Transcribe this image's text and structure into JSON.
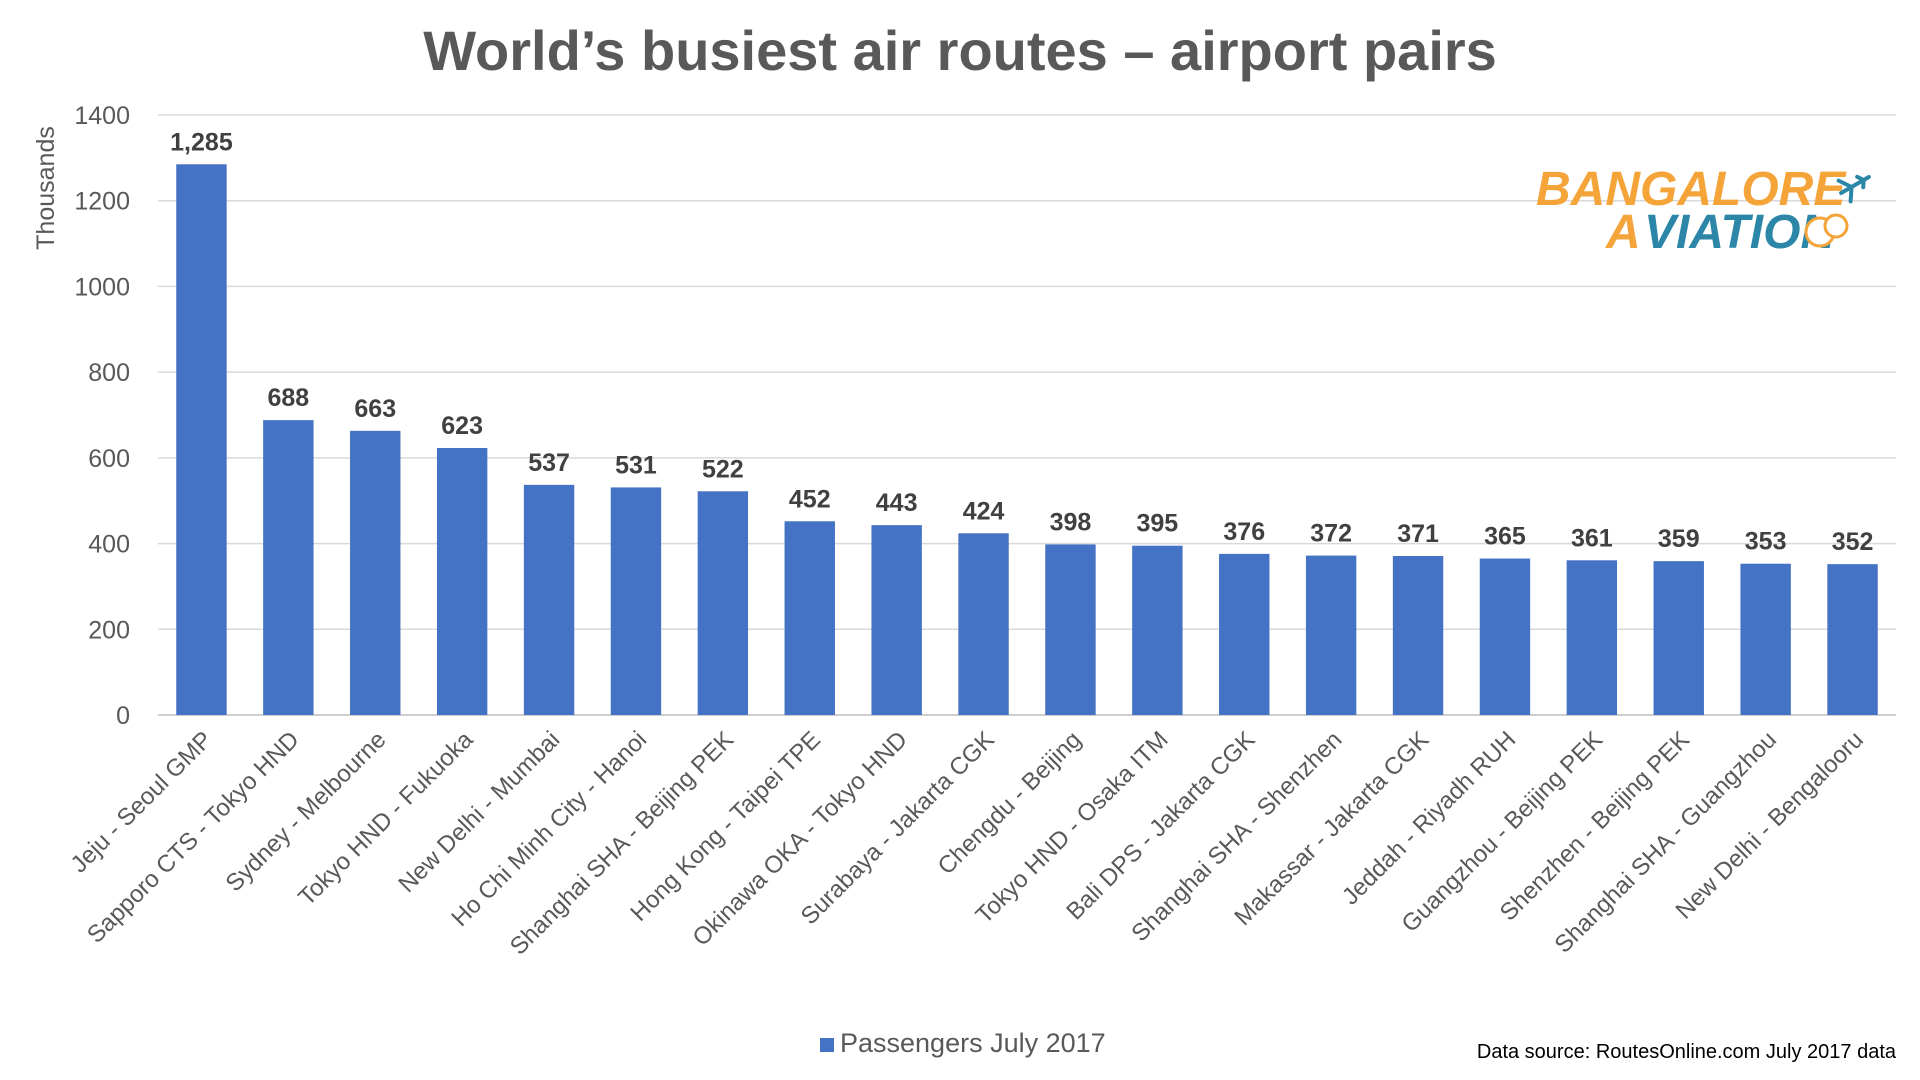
{
  "chart_data": {
    "type": "bar",
    "title": "World’s busiest air routes – airport pairs",
    "ylabel": "Thousands",
    "ylim": [
      0,
      1400
    ],
    "yticks": [
      0,
      200,
      400,
      600,
      800,
      1000,
      1200,
      1400
    ],
    "grid": true,
    "categories": [
      "Jeju - Seoul GMP",
      "Sapporo CTS - Tokyo HND",
      "Sydney - Melbourne",
      "Tokyo HND - Fukuoka",
      "New Delhi - Mumbai",
      "Ho Chi Minh City - Hanoi",
      "Shanghai SHA - Beijing PEK",
      "Hong Kong - Taipei TPE",
      "Okinawa OKA - Tokyo HND",
      "Surabaya - Jakarta CGK",
      "Chengdu - Beijing",
      "Tokyo HND - Osaka ITM",
      "Bali DPS - Jakarta CGK",
      "Shanghai SHA - Shenzhen",
      "Makassar - Jakarta CGK",
      "Jeddah - Riyadh RUH",
      "Guangzhou - Beijing PEK",
      "Shenzhen - Beijing PEK",
      "Shanghai SHA - Guangzhou",
      "New Delhi - Bengalooru"
    ],
    "series": [
      {
        "name": "Passengers July 2017",
        "color": "#4472C4",
        "values": [
          1285,
          688,
          663,
          623,
          537,
          531,
          522,
          452,
          443,
          424,
          398,
          395,
          376,
          372,
          371,
          365,
          361,
          359,
          353,
          352
        ],
        "labels": [
          "1,285",
          "688",
          "663",
          "623",
          "537",
          "531",
          "522",
          "452",
          "443",
          "424",
          "398",
          "395",
          "376",
          "372",
          "371",
          "365",
          "361",
          "359",
          "353",
          "352"
        ]
      }
    ],
    "legend_position": "bottom",
    "source": "Data source: RoutesOnline.com July 2017 data"
  },
  "logo": {
    "line1": "BANGALORE",
    "line2": "VIATION",
    "line2_prefix": "A",
    "orange": "#F5A43A",
    "blue": "#2C86A8"
  }
}
